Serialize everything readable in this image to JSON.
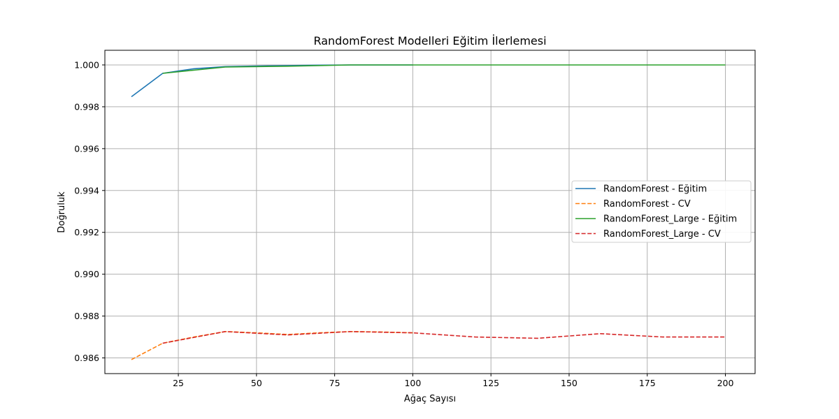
{
  "chart_data": {
    "type": "line",
    "title": "RandomForest Modelleri Eğitim İlerlemesi",
    "xlabel": "Ağaç Sayısı",
    "ylabel": "Doğruluk",
    "xlim": [
      1.5,
      209.5
    ],
    "ylim": [
      0.98525,
      1.0007
    ],
    "xticks": [
      25,
      50,
      75,
      100,
      125,
      150,
      175,
      200
    ],
    "xtick_labels": [
      "25",
      "50",
      "75",
      "100",
      "125",
      "150",
      "175",
      "200"
    ],
    "yticks": [
      0.986,
      0.988,
      0.99,
      0.992,
      0.994,
      0.996,
      0.998,
      1.0
    ],
    "ytick_labels": [
      "0.986",
      "0.988",
      "0.990",
      "0.992",
      "0.994",
      "0.996",
      "0.998",
      "1.000"
    ],
    "grid": true,
    "legend_position": "center-right",
    "series": [
      {
        "name": "RandomForest - Eğitim",
        "color": "#1f77b4",
        "dash": "solid",
        "x": [
          10,
          20,
          30,
          40,
          50,
          60,
          70,
          80,
          90,
          100
        ],
        "y": [
          0.99848,
          0.9996,
          0.99982,
          0.99992,
          0.99995,
          0.99997,
          0.99999,
          1.0,
          1.0,
          1.0
        ]
      },
      {
        "name": "RandomForest - CV",
        "color": "#ff7f0e",
        "dash": "dashed",
        "x": [
          10,
          20,
          30,
          40,
          50,
          60,
          70,
          80,
          90,
          100
        ],
        "y": [
          0.98592,
          0.9867,
          0.987,
          0.98726,
          0.9872,
          0.98712,
          0.9872,
          0.98726,
          0.98724,
          0.9872
        ]
      },
      {
        "name": "RandomForest_Large - Eğitim",
        "color": "#2ca02c",
        "dash": "solid",
        "x": [
          20,
          40,
          60,
          80,
          100,
          120,
          140,
          160,
          180,
          200
        ],
        "y": [
          0.9996,
          0.9999,
          0.99994,
          1.0,
          1.0,
          1.0,
          1.0,
          1.0,
          1.0,
          1.0
        ]
      },
      {
        "name": "RandomForest_Large - CV",
        "color": "#d62728",
        "dash": "dashed",
        "x": [
          20,
          40,
          60,
          80,
          100,
          120,
          140,
          160,
          180,
          200
        ],
        "y": [
          0.9867,
          0.98726,
          0.9871,
          0.98726,
          0.9872,
          0.987,
          0.98694,
          0.98716,
          0.987,
          0.987
        ]
      }
    ]
  }
}
